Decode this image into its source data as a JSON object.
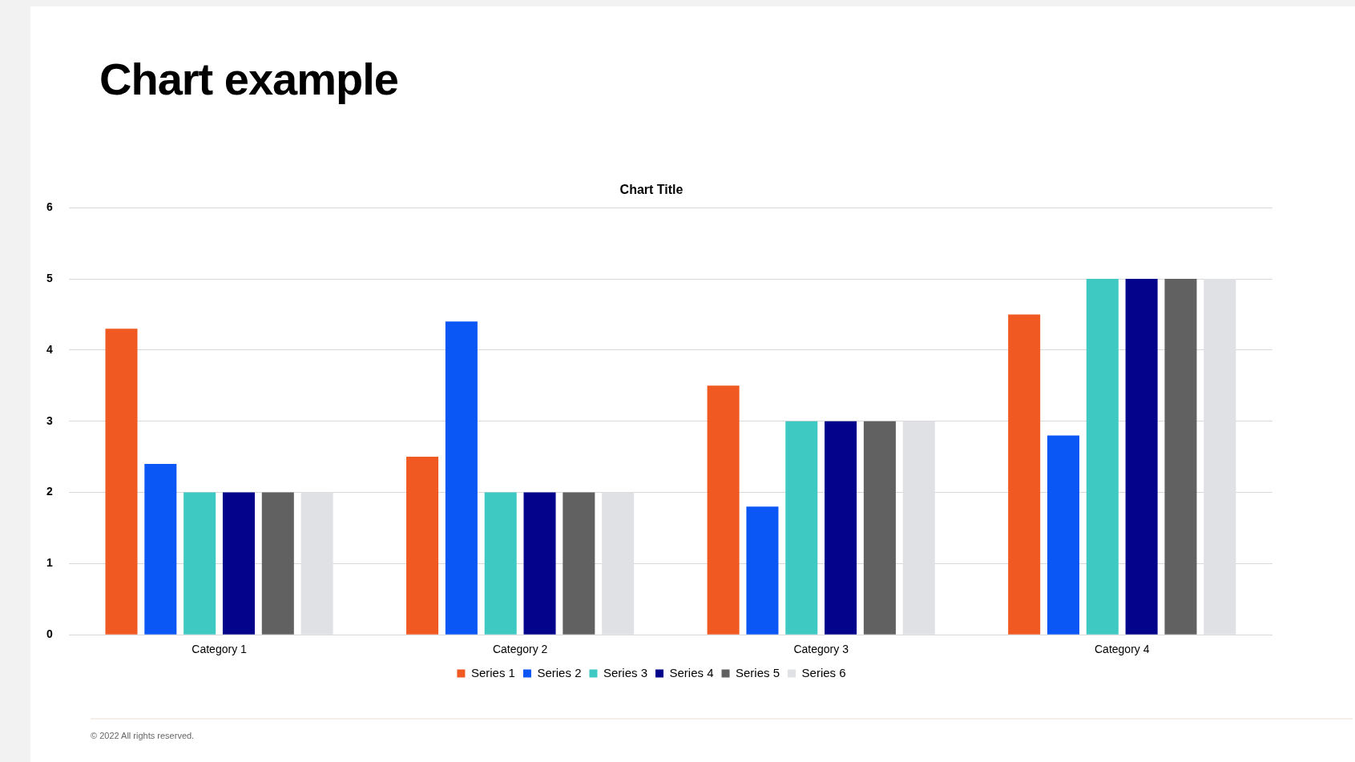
{
  "chart_data": {
    "type": "bar",
    "title": "Chart example",
    "subtitle": "Chart Title",
    "categories": [
      "Category 1",
      "Category 2",
      "Category 3",
      "Category 4"
    ],
    "series": [
      {
        "name": "Series 1",
        "color": "#f05a22",
        "values": [
          4.3,
          2.5,
          3.5,
          4.5
        ]
      },
      {
        "name": "Series 2",
        "color": "#0b57f5",
        "values": [
          2.4,
          4.4,
          1.8,
          2.8
        ]
      },
      {
        "name": "Series 3",
        "color": "#3ec9c3",
        "values": [
          2,
          2,
          3,
          5
        ]
      },
      {
        "name": "Series 4",
        "color": "#03038c",
        "values": [
          2,
          2,
          3,
          5
        ]
      },
      {
        "name": "Series 5",
        "color": "#616161",
        "values": [
          2,
          2,
          3,
          5
        ]
      },
      {
        "name": "Series 6",
        "color": "#dfe1e5",
        "values": [
          2,
          2,
          3,
          5
        ]
      }
    ],
    "ylim": [
      0,
      6
    ],
    "yticks": [
      0,
      1,
      2,
      3,
      4,
      5,
      6
    ],
    "grid": "y",
    "legend": "bottom",
    "annotations": [
      "© 2022 All rights reserved."
    ]
  }
}
